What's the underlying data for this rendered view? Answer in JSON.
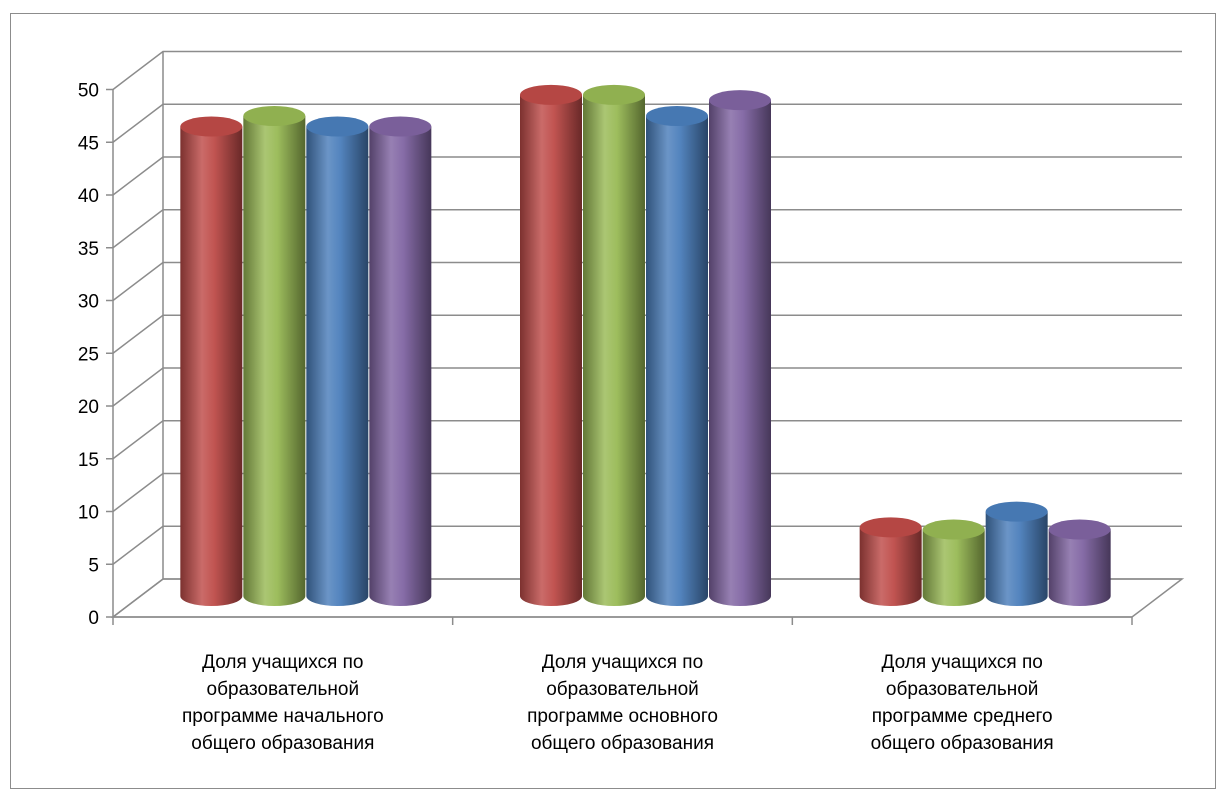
{
  "chart_data": {
    "type": "bar",
    "style": "3d-cylinder",
    "categories": [
      "Доля учащихся по\nобразовательной\nпрограмме начального\nобщего образования",
      "Доля учащихся по\nобразовательной\nпрограмме основного\nобщего образования",
      "Доля учащихся по\nобразовательной\nпрограмме среднего\nобщего образования"
    ],
    "series": [
      {
        "color": "#be4b48",
        "values": [
          44.5,
          47.5,
          6.5
        ]
      },
      {
        "color": "#98b954",
        "values": [
          45.5,
          47.5,
          6.3
        ]
      },
      {
        "color": "#4a7ebb",
        "values": [
          44.5,
          45.5,
          8.0
        ]
      },
      {
        "color": "#8064a2",
        "values": [
          44.5,
          47.0,
          6.3
        ]
      }
    ],
    "ylim": [
      0,
      50
    ],
    "yticks": [
      "0",
      "5",
      "10",
      "15",
      "20",
      "25",
      "30",
      "35",
      "40",
      "45",
      "50"
    ],
    "grid": true,
    "legend": "none"
  }
}
